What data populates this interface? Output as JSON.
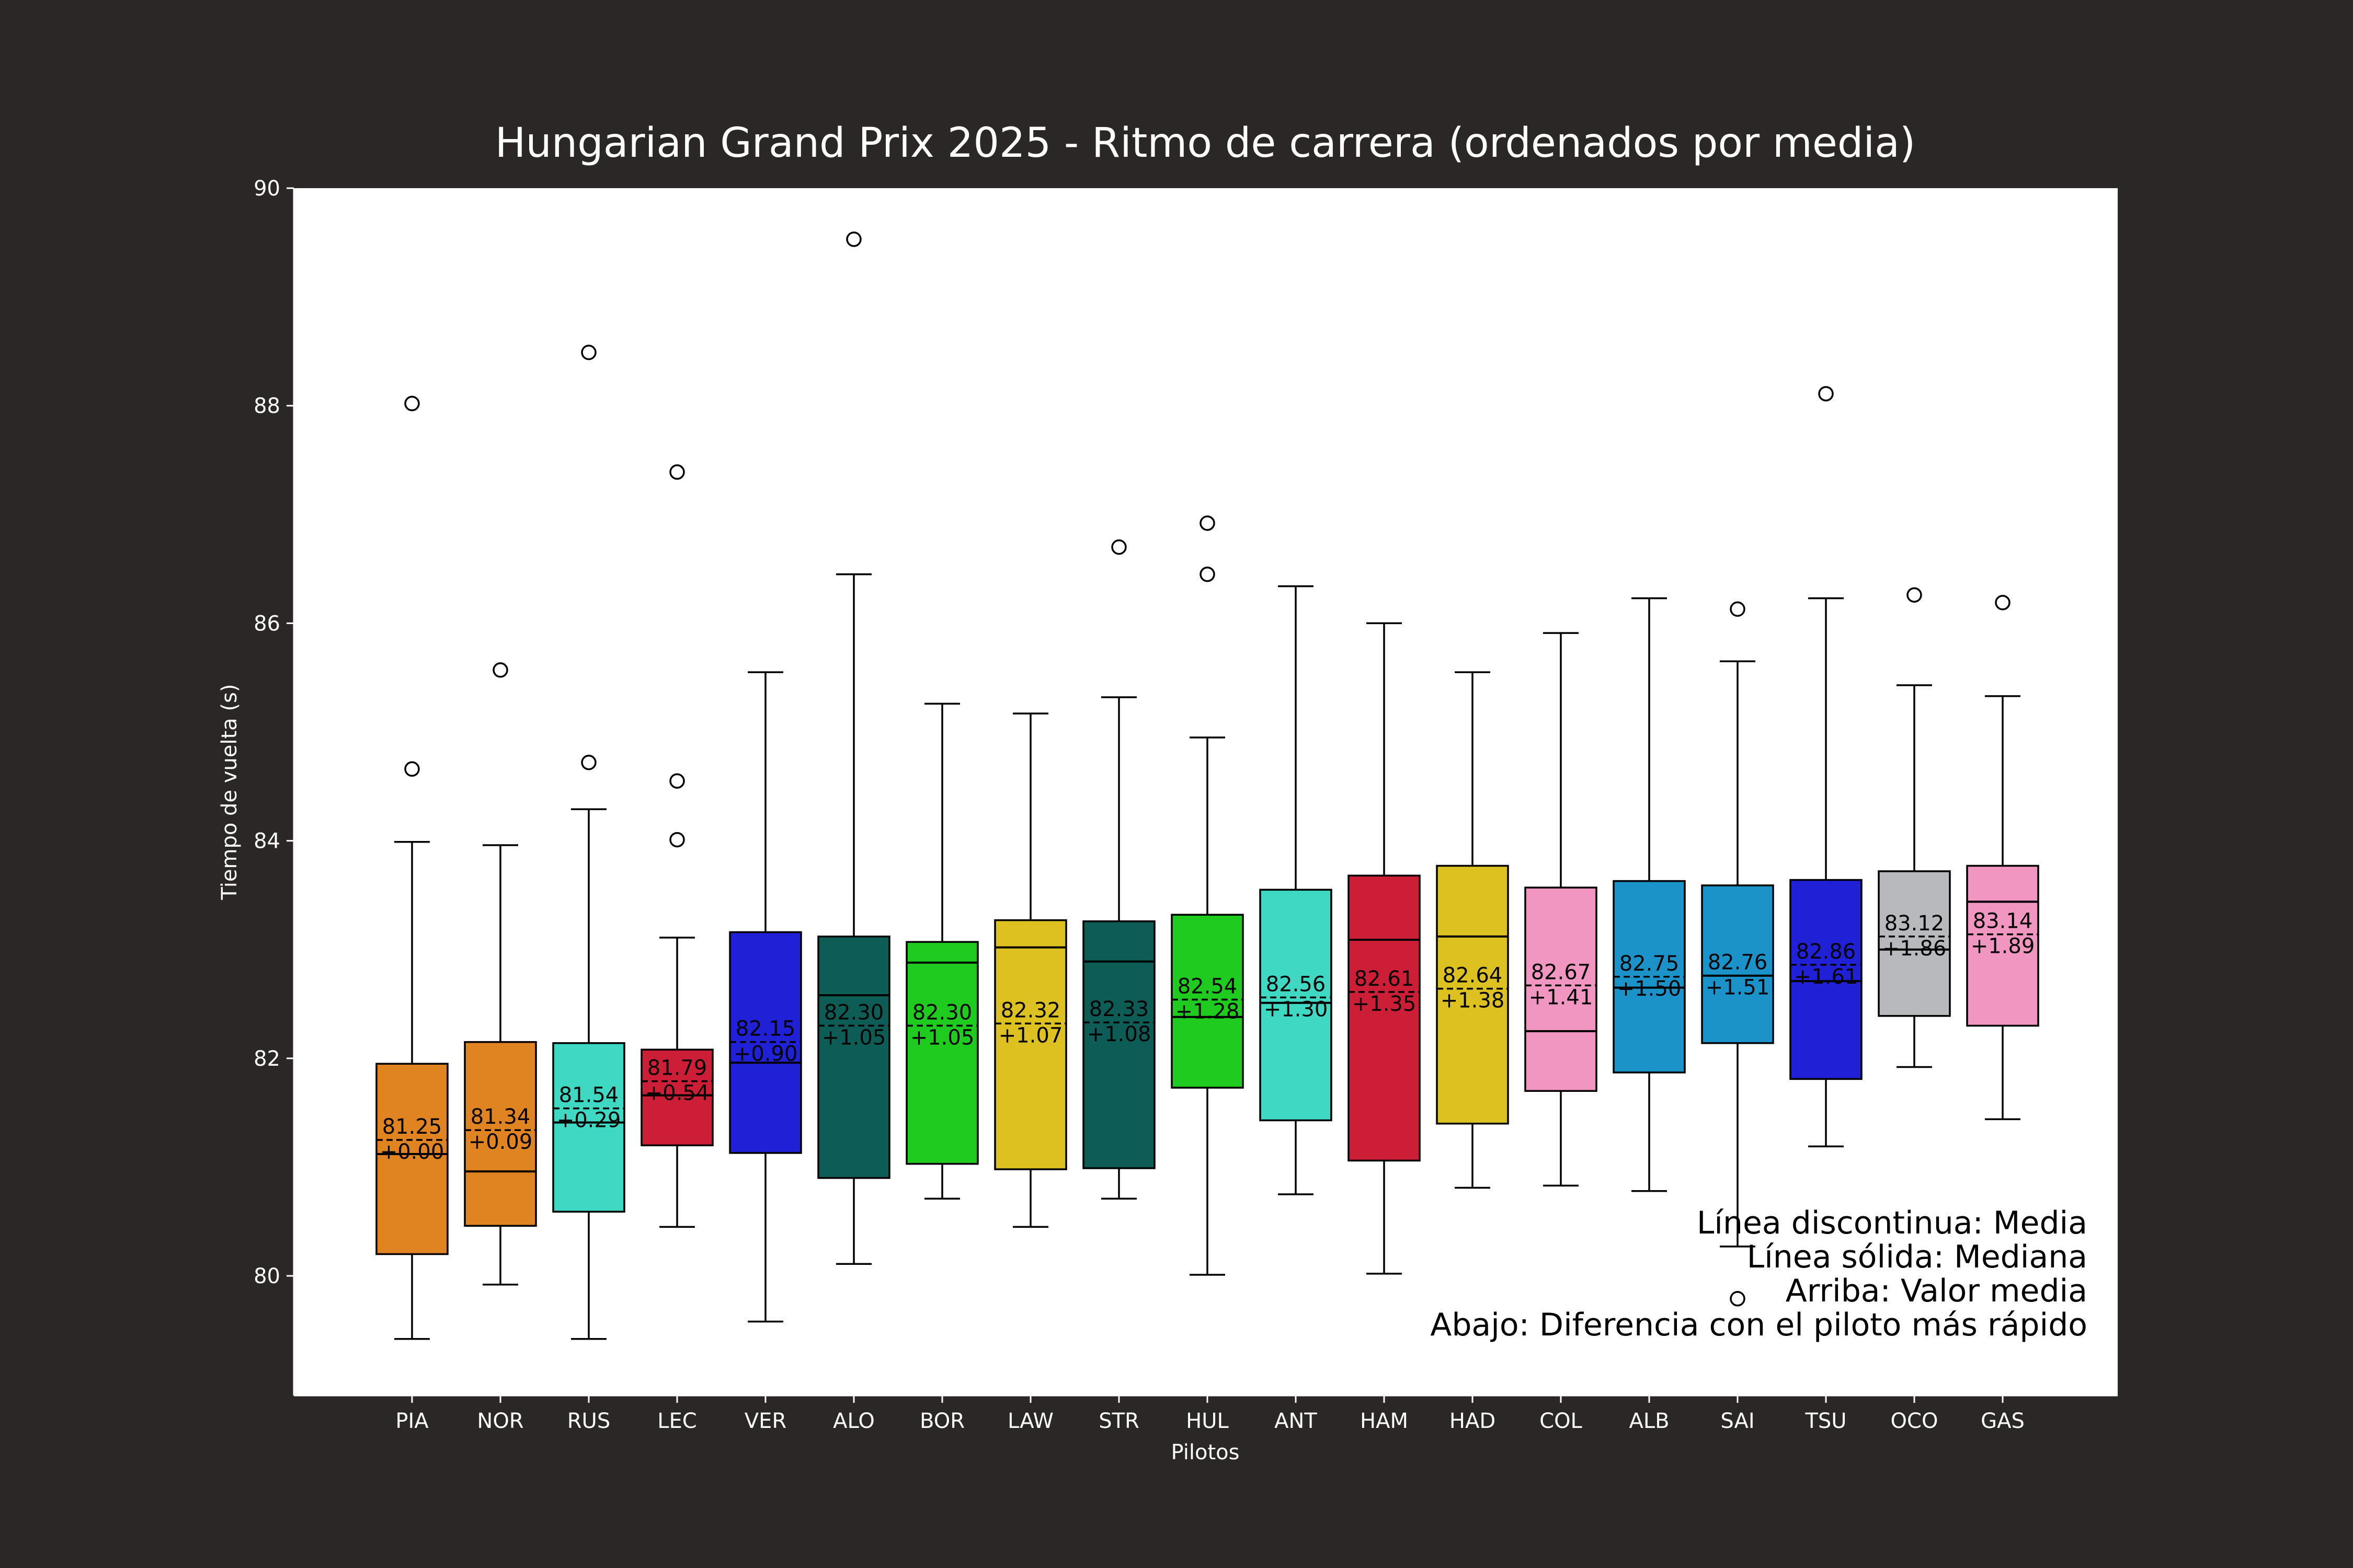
{
  "chart_data": {
    "type": "box",
    "title": "Hungarian Grand Prix 2025 - Ritmo de carrera (ordenados por media)",
    "xlabel": "Pilotos",
    "ylabel": "Tiempo de vuelta (s)",
    "ylim": [
      78.9,
      90.0
    ],
    "yticks": [
      80,
      82,
      84,
      86,
      88,
      90
    ],
    "grid": false,
    "legend_position": "bottom-right",
    "annotations": [
      "Línea discontinua: Media",
      "Línea sólida: Mediana",
      "Arriba: Valor media",
      "Abajo: Diferencia con el piloto más rápido"
    ],
    "drivers": [
      {
        "name": "PIA",
        "color": "#e08422",
        "whisker_low": 79.42,
        "q1": 80.2,
        "median": 81.12,
        "q3": 81.95,
        "whisker_high": 83.99,
        "mean": 81.25,
        "mean_label": "81.25",
        "diff_label": "+0.00",
        "outliers": [
          84.66,
          88.02
        ]
      },
      {
        "name": "NOR",
        "color": "#e08422",
        "whisker_low": 79.92,
        "q1": 80.46,
        "median": 80.96,
        "q3": 82.15,
        "whisker_high": 83.96,
        "mean": 81.34,
        "mean_label": "81.34",
        "diff_label": "+0.09",
        "outliers": [
          85.57
        ]
      },
      {
        "name": "RUS",
        "color": "#3fd9c3",
        "whisker_low": 79.42,
        "q1": 80.59,
        "median": 81.41,
        "q3": 82.14,
        "whisker_high": 84.29,
        "mean": 81.54,
        "mean_label": "81.54",
        "diff_label": "+0.29",
        "outliers": [
          84.72,
          88.49
        ]
      },
      {
        "name": "LEC",
        "color": "#cc1e36",
        "whisker_low": 80.45,
        "q1": 81.2,
        "median": 81.66,
        "q3": 82.08,
        "whisker_high": 83.11,
        "mean": 81.79,
        "mean_label": "81.79",
        "diff_label": "+0.54",
        "outliers": [
          84.01,
          84.55,
          87.39
        ]
      },
      {
        "name": "VER",
        "color": "#2020d6",
        "whisker_low": 79.58,
        "q1": 81.13,
        "median": 81.96,
        "q3": 83.16,
        "whisker_high": 85.55,
        "mean": 82.15,
        "mean_label": "82.15",
        "diff_label": "+0.90",
        "outliers": []
      },
      {
        "name": "ALO",
        "color": "#0d5c55",
        "whisker_low": 80.11,
        "q1": 80.9,
        "median": 82.58,
        "q3": 83.12,
        "whisker_high": 86.45,
        "mean": 82.3,
        "mean_label": "82.30",
        "diff_label": "+1.05",
        "outliers": [
          89.53
        ]
      },
      {
        "name": "BOR",
        "color": "#1ecb1e",
        "whisker_low": 80.71,
        "q1": 81.03,
        "median": 82.88,
        "q3": 83.07,
        "whisker_high": 85.26,
        "mean": 82.3,
        "mean_label": "82.30",
        "diff_label": "+1.05",
        "outliers": []
      },
      {
        "name": "LAW",
        "color": "#dcc121",
        "whisker_low": 80.45,
        "q1": 80.98,
        "median": 83.02,
        "q3": 83.27,
        "whisker_high": 85.17,
        "mean": 82.32,
        "mean_label": "82.32",
        "diff_label": "+1.07",
        "outliers": []
      },
      {
        "name": "STR",
        "color": "#0d5c55",
        "whisker_low": 80.71,
        "q1": 80.99,
        "median": 82.89,
        "q3": 83.26,
        "whisker_high": 85.32,
        "mean": 82.33,
        "mean_label": "82.33",
        "diff_label": "+1.08",
        "outliers": [
          86.7
        ]
      },
      {
        "name": "HUL",
        "color": "#1ecb1e",
        "whisker_low": 80.01,
        "q1": 81.73,
        "median": 82.38,
        "q3": 83.32,
        "whisker_high": 84.95,
        "mean": 82.54,
        "mean_label": "82.54",
        "diff_label": "+1.28",
        "outliers": [
          86.45,
          86.92
        ]
      },
      {
        "name": "ANT",
        "color": "#3fd9c3",
        "whisker_low": 80.75,
        "q1": 81.43,
        "median": 82.51,
        "q3": 83.55,
        "whisker_high": 86.34,
        "mean": 82.56,
        "mean_label": "82.56",
        "diff_label": "+1.30",
        "outliers": []
      },
      {
        "name": "HAM",
        "color": "#cc1e36",
        "whisker_low": 80.02,
        "q1": 81.06,
        "median": 83.09,
        "q3": 83.68,
        "whisker_high": 86.0,
        "mean": 82.61,
        "mean_label": "82.61",
        "diff_label": "+1.35",
        "outliers": []
      },
      {
        "name": "HAD",
        "color": "#dcc121",
        "whisker_low": 80.81,
        "q1": 81.4,
        "median": 83.12,
        "q3": 83.77,
        "whisker_high": 85.55,
        "mean": 82.64,
        "mean_label": "82.64",
        "diff_label": "+1.38",
        "outliers": []
      },
      {
        "name": "COL",
        "color": "#f196c0",
        "whisker_low": 80.83,
        "q1": 81.7,
        "median": 82.25,
        "q3": 83.57,
        "whisker_high": 85.91,
        "mean": 82.67,
        "mean_label": "82.67",
        "diff_label": "+1.41",
        "outliers": []
      },
      {
        "name": "ALB",
        "color": "#1b93c8",
        "whisker_low": 80.78,
        "q1": 81.87,
        "median": 82.65,
        "q3": 83.63,
        "whisker_high": 86.23,
        "mean": 82.75,
        "mean_label": "82.75",
        "diff_label": "+1.50",
        "outliers": []
      },
      {
        "name": "SAI",
        "color": "#1b93c8",
        "whisker_low": 80.27,
        "q1": 82.14,
        "median": 82.76,
        "q3": 83.59,
        "whisker_high": 85.65,
        "mean": 82.76,
        "mean_label": "82.76",
        "diff_label": "+1.51",
        "outliers": [
          79.79,
          86.13
        ]
      },
      {
        "name": "TSU",
        "color": "#2020d6",
        "whisker_low": 81.19,
        "q1": 81.81,
        "median": 82.71,
        "q3": 83.64,
        "whisker_high": 86.23,
        "mean": 82.86,
        "mean_label": "82.86",
        "diff_label": "+1.61",
        "outliers": [
          88.11
        ]
      },
      {
        "name": "OCO",
        "color": "#b7b9bc",
        "whisker_low": 81.92,
        "q1": 82.39,
        "median": 83.0,
        "q3": 83.72,
        "whisker_high": 85.43,
        "mean": 83.12,
        "mean_label": "83.12",
        "diff_label": "+1.86",
        "outliers": [
          86.26
        ]
      },
      {
        "name": "GAS",
        "color": "#f196c0",
        "whisker_low": 81.44,
        "q1": 82.3,
        "median": 83.44,
        "q3": 83.77,
        "whisker_high": 85.33,
        "mean": 83.14,
        "mean_label": "83.14",
        "diff_label": "+1.89",
        "outliers": [
          86.19
        ]
      }
    ]
  }
}
